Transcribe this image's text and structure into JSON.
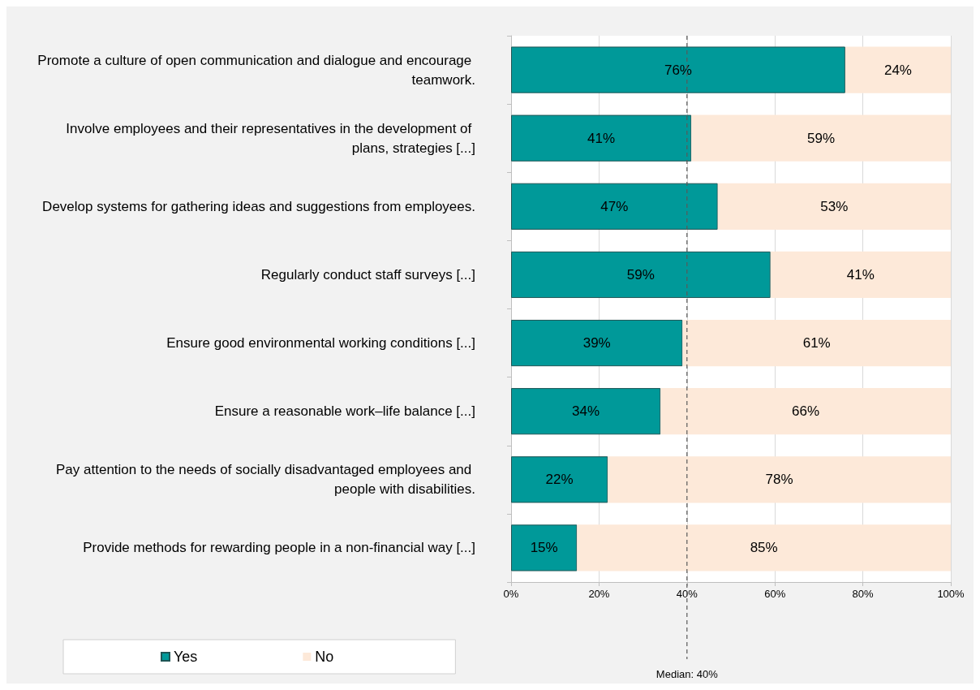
{
  "chart_data": {
    "type": "bar",
    "orientation": "horizontal",
    "stacked": true,
    "categories": [
      "Promote a culture of open communication and dialogue and encourage teamwork.",
      "Involve employees and their representatives in the development of plans, strategies [...]",
      "Develop systems for gathering ideas and suggestions from employees.",
      "Regularly conduct staff surveys [...]",
      "Ensure good environmental working conditions [...]",
      "Ensure a reasonable work–life balance [...]",
      "Pay attention to the needs of socially disadvantaged employees and people with disabilities.",
      "Provide methods for rewarding people in a non-financial way [...]"
    ],
    "series": [
      {
        "name": "Yes",
        "color": "#009999",
        "values": [
          76,
          41,
          47,
          59,
          39,
          34,
          22,
          15
        ],
        "value_labels": [
          "76%",
          "41%",
          "47%",
          "59%",
          "39%",
          "34%",
          "22%",
          "15%"
        ]
      },
      {
        "name": "No",
        "color": "#fde9d9",
        "values": [
          24,
          59,
          53,
          41,
          61,
          66,
          78,
          85
        ],
        "value_labels": [
          "24%",
          "59%",
          "53%",
          "41%",
          "61%",
          "66%",
          "78%",
          "85%"
        ]
      }
    ],
    "xlim": [
      0,
      100
    ],
    "xticks": [
      {
        "value": 0,
        "label": "0%"
      },
      {
        "value": 20,
        "label": "20%"
      },
      {
        "value": 40,
        "label": "40%"
      },
      {
        "value": 60,
        "label": "60%"
      },
      {
        "value": 80,
        "label": "80%"
      },
      {
        "value": 100,
        "label": "100%"
      }
    ],
    "grid": "x",
    "legend": "bottom left",
    "ref_lines": [
      {
        "axis": "x",
        "value": 40,
        "label": "Median: 40%",
        "color": "#595959",
        "line_style": "dashed"
      }
    ]
  }
}
